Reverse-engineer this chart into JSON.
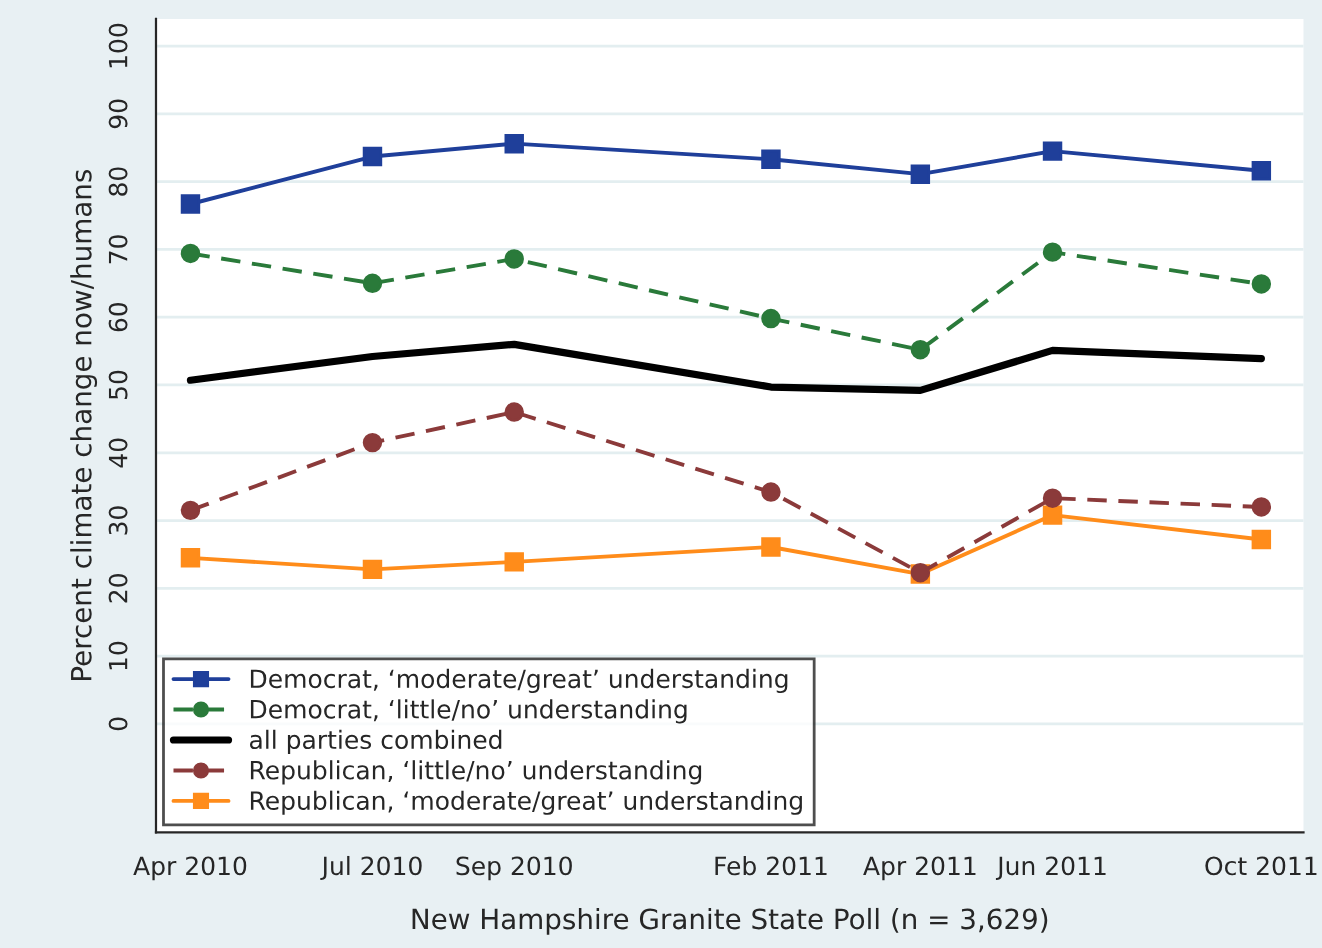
{
  "chart_data": {
    "type": "line",
    "xlabel": "New Hampshire Granite State Poll (n = 3,629)",
    "ylabel": "Percent climate change now/humans",
    "x": [
      "2010-04-04",
      "2010-07-08",
      "2010-09-20",
      "2011-02-01",
      "2011-04-20",
      "2011-06-28",
      "2011-10-15"
    ],
    "xlim": [
      "2010-03-17",
      "2011-11-06"
    ],
    "xticks": [
      {
        "value": "2010-04-04",
        "label": "Apr 2010"
      },
      {
        "value": "2010-07-08",
        "label": "Jul 2010"
      },
      {
        "value": "2010-09-20",
        "label": "Sep 2010"
      },
      {
        "value": "2011-02-01",
        "label": "Feb 2011"
      },
      {
        "value": "2011-04-20",
        "label": "Apr 2011"
      },
      {
        "value": "2011-06-28",
        "label": "Jun 2011"
      },
      {
        "value": "2011-10-15",
        "label": "Oct 2011"
      }
    ],
    "ylim": [
      -16,
      104
    ],
    "yticks": [
      0,
      10,
      20,
      30,
      40,
      50,
      60,
      70,
      80,
      90,
      100
    ],
    "grid": "y",
    "legend": "bottom left",
    "series": [
      {
        "name": "Democrat, ‘moderate/great’ understanding",
        "color": "#1f3f9a",
        "marker": "square",
        "line_style": "solid",
        "values": [
          76.7,
          83.7,
          85.6,
          83.3,
          81.1,
          84.5,
          81.6
        ]
      },
      {
        "name": "Democrat, ‘little/no’ understanding",
        "color": "#2a7a3a",
        "marker": "circle",
        "line_style": "dashed",
        "values": [
          69.4,
          65.0,
          68.6,
          59.8,
          55.2,
          69.6,
          64.9
        ]
      },
      {
        "name": "all parties combined",
        "color": "#000000",
        "marker": "none",
        "line_style": "solid",
        "values": [
          50.7,
          54.2,
          56.0,
          49.7,
          49.2,
          55.1,
          53.9
        ]
      },
      {
        "name": "Republican, ‘little/no’ understanding",
        "color": "#8b3a3a",
        "marker": "circle",
        "line_style": "dashed",
        "values": [
          31.5,
          41.5,
          46.0,
          34.2,
          22.3,
          33.3,
          32.0
        ]
      },
      {
        "name": "Republican, ‘moderate/great’ understanding",
        "color": "#ff8c1a",
        "marker": "square",
        "line_style": "solid",
        "values": [
          24.5,
          22.8,
          23.9,
          26.1,
          22.1,
          30.8,
          27.2
        ]
      }
    ]
  }
}
